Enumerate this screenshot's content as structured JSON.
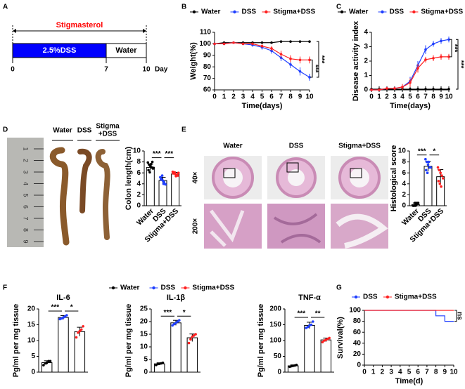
{
  "panel_labels": [
    "A",
    "B",
    "C",
    "D",
    "E",
    "F",
    "G"
  ],
  "panel_a": {
    "title": "Stigmasterol",
    "xlim": [
      0,
      10
    ],
    "xticks": [
      0,
      7,
      10
    ],
    "unit": "Day",
    "segments": [
      {
        "label": "2.5%DSS",
        "color": "#0000ff",
        "start": 0,
        "end": 7
      },
      {
        "label": "Water",
        "color": "#ffffff",
        "start": 7,
        "end": 10
      }
    ]
  },
  "panel_d": {
    "photo_labels": [
      "Water",
      "DSS",
      "Stigma",
      "+DSS"
    ],
    "ruler_labels": [
      "1",
      "2",
      "3",
      "4",
      "5",
      "6",
      "7",
      "8",
      "9"
    ]
  },
  "panel_e": {
    "column_labels": [
      "Water",
      "DSS",
      "Stigma+DSS"
    ],
    "row_labels": [
      "40×",
      "200×"
    ]
  },
  "panel_f_legend": [
    {
      "name": "Water",
      "color": "#000000"
    },
    {
      "name": "DSS",
      "color": "#1f3fff"
    },
    {
      "name": "Stigma+DSS",
      "color": "#ff2020"
    }
  ],
  "chart_data": [
    {
      "type": "line",
      "xlabel": "Time(days)",
      "ylabel": "Weight(%)",
      "x": [
        0,
        1,
        2,
        3,
        4,
        5,
        6,
        7,
        8,
        9,
        10
      ],
      "xlim": [
        0,
        10
      ],
      "xticks": [
        0,
        1,
        2,
        3,
        4,
        5,
        6,
        7,
        8,
        9,
        10
      ],
      "ylim": [
        60,
        110
      ],
      "yticks": [
        60,
        70,
        80,
        90,
        100,
        110
      ],
      "series": [
        {
          "name": "Water",
          "color": "#000000",
          "values": [
            100,
            101,
            101,
            101,
            101,
            101,
            101,
            102,
            102,
            102,
            102
          ],
          "errors": [
            0.5,
            1,
            1,
            1,
            1,
            1,
            1,
            1,
            1,
            1,
            1
          ]
        },
        {
          "name": "DSS",
          "color": "#1f3fff",
          "values": [
            100,
            100,
            101,
            100,
            99,
            97,
            94,
            88,
            82,
            76,
            71
          ],
          "errors": [
            0.5,
            1,
            1,
            1,
            1.5,
            2,
            2.5,
            3,
            3,
            3.5,
            3
          ]
        },
        {
          "name": "Stigma+DSS",
          "color": "#ff2020",
          "values": [
            100,
            100,
            101,
            100,
            100,
            98,
            96,
            91,
            87,
            86,
            86
          ],
          "errors": [
            0.5,
            1,
            1,
            1,
            1,
            1.5,
            2,
            3,
            3,
            3,
            3
          ]
        }
      ],
      "significance": [
        "***",
        "***"
      ]
    },
    {
      "type": "line",
      "xlabel": "Time(days)",
      "ylabel": "Disease activity index",
      "x": [
        0,
        1,
        2,
        3,
        4,
        5,
        6,
        7,
        8,
        9,
        10
      ],
      "xlim": [
        0,
        10
      ],
      "xticks": [
        0,
        1,
        2,
        3,
        4,
        5,
        6,
        7,
        8,
        9,
        10
      ],
      "ylim": [
        0,
        4
      ],
      "yticks": [
        0,
        1,
        2,
        3,
        4
      ],
      "series": [
        {
          "name": "Water",
          "color": "#000000",
          "values": [
            0.05,
            0.05,
            0.05,
            0.05,
            0.05,
            0.05,
            0.05,
            0.05,
            0.05,
            0.05,
            0.05
          ],
          "errors": [
            0.05,
            0.2,
            0.2,
            0.2,
            0.2,
            0.2,
            0.2,
            0.2,
            0.2,
            0.2,
            0.2
          ]
        },
        {
          "name": "DSS",
          "color": "#1f3fff",
          "values": [
            0,
            0,
            0.1,
            0.1,
            0.2,
            0.6,
            1.7,
            2.8,
            3.2,
            3.4,
            3.5
          ],
          "errors": [
            0,
            0.1,
            0.1,
            0.1,
            0.2,
            0.3,
            0.3,
            0.3,
            0.2,
            0.2,
            0.2
          ]
        },
        {
          "name": "Stigma+DSS",
          "color": "#ff2020",
          "values": [
            0,
            0,
            0.1,
            0.1,
            0.2,
            0.5,
            1.5,
            2.1,
            2.2,
            2.3,
            2.3
          ],
          "errors": [
            0,
            0.1,
            0.1,
            0.1,
            0.2,
            0.3,
            0.3,
            0.2,
            0.2,
            0.2,
            0.2
          ]
        }
      ],
      "significance": [
        "***",
        "***"
      ]
    },
    {
      "type": "bar",
      "ylabel": "Colon length(cm)",
      "categories": [
        "Water",
        "DSS",
        "Stigma+DSS"
      ],
      "values": [
        7.0,
        4.6,
        5.8
      ],
      "errors": [
        0.6,
        0.6,
        0.3
      ],
      "bar_color": "#ffffff",
      "edge_color": "#000000",
      "colors": [
        "#000000",
        "#1f3fff",
        "#ff2020"
      ],
      "points": [
        [
          7.9,
          7.5,
          7.2,
          7.0,
          6.8,
          6.5,
          6.1,
          7.6,
          8.0,
          6.9
        ],
        [
          5.2,
          4.9,
          4.6,
          4.3,
          3.9,
          4.8,
          5.5,
          4.0
        ],
        [
          6.2,
          6.0,
          5.8,
          5.6,
          5.5,
          5.9,
          6.1,
          5.4,
          5.7,
          6.0
        ]
      ],
      "ylim": [
        0,
        10
      ],
      "yticks": [
        0,
        2,
        4,
        6,
        8,
        10
      ],
      "significance": [
        "***",
        "***"
      ]
    },
    {
      "type": "bar",
      "ylabel": "Histological score",
      "categories": [
        "Water",
        "DSS",
        "Stigma+DSS"
      ],
      "values": [
        0.2,
        7.2,
        5.3
      ],
      "errors": [
        0.3,
        0.9,
        1.3
      ],
      "bar_color": "#ffffff",
      "edge_color": "#000000",
      "colors": [
        "#000000",
        "#1f3fff",
        "#ff2020"
      ],
      "points": [
        [
          0,
          0,
          0,
          0.5,
          0.5,
          0,
          0.5,
          0.2
        ],
        [
          8.5,
          8,
          7.5,
          7,
          7,
          6.5,
          6,
          8
        ],
        [
          7,
          6.5,
          6,
          5.5,
          5,
          4.5,
          4,
          3.5
        ]
      ],
      "ylim": [
        0,
        10
      ],
      "yticks": [
        0,
        2,
        4,
        6,
        8,
        10
      ],
      "significance": [
        "***",
        "*"
      ]
    },
    {
      "type": "bar",
      "title": "IL-6",
      "ylabel": "Pg/ml per mg tissue",
      "categories": [
        null,
        null,
        null
      ],
      "values": [
        3,
        17.3,
        12.8
      ],
      "errors": [
        0.6,
        0.6,
        1.4
      ],
      "bar_color": "#ffffff",
      "edge_color": "#000000",
      "colors": [
        "#000000",
        "#1f3fff",
        "#ff2020"
      ],
      "points": [
        [
          2.2,
          2.8,
          3,
          3.5,
          3.5
        ],
        [
          16.8,
          17,
          17.3,
          17.6,
          18
        ],
        [
          11,
          12.5,
          13,
          13.5,
          14.5
        ]
      ],
      "ylim": [
        0,
        20
      ],
      "yticks": [
        0,
        5,
        10,
        15,
        20
      ],
      "significance": [
        "***",
        "*"
      ]
    },
    {
      "type": "bar",
      "title": "IL-1β",
      "ylabel": "Pg/ml per mg tissue",
      "categories": [
        null,
        null,
        null
      ],
      "values": [
        3.3,
        19.5,
        13.6
      ],
      "errors": [
        0.4,
        1,
        1.5
      ],
      "bar_color": "#ffffff",
      "edge_color": "#000000",
      "colors": [
        "#000000",
        "#1f3fff",
        "#ff2020"
      ],
      "points": [
        [
          2.8,
          3.2,
          3.3,
          3.5,
          3.7
        ],
        [
          18.5,
          19,
          19.5,
          20,
          20.5
        ],
        [
          11.5,
          13,
          14,
          14.5,
          15
        ]
      ],
      "ylim": [
        0,
        25
      ],
      "yticks": [
        0,
        5,
        10,
        15,
        20,
        25
      ],
      "significance": [
        "***",
        "*"
      ]
    },
    {
      "type": "bar",
      "title": "TNF-α",
      "ylabel": "Pg/ml per mg tissue",
      "categories": [
        null,
        null,
        null
      ],
      "values": [
        20,
        148,
        102
      ],
      "errors": [
        3,
        10,
        6
      ],
      "bar_color": "#ffffff",
      "edge_color": "#000000",
      "colors": [
        "#000000",
        "#1f3fff",
        "#ff2020"
      ],
      "points": [
        [
          17,
          19,
          20,
          21,
          23
        ],
        [
          140,
          143,
          148,
          150,
          160
        ],
        [
          95,
          100,
          102,
          105,
          108
        ]
      ],
      "ylim": [
        0,
        200
      ],
      "yticks": [
        0,
        50,
        100,
        150,
        200
      ],
      "significance": [
        "***",
        "**"
      ]
    },
    {
      "type": "line",
      "step": true,
      "xlabel": "Time(d)",
      "ylabel": "Survival(%)",
      "x": [
        0,
        1,
        2,
        3,
        4,
        5,
        6,
        7,
        8,
        9,
        10
      ],
      "xlim": [
        0,
        10
      ],
      "xticks": [
        0,
        1,
        2,
        3,
        4,
        5,
        6,
        7,
        8,
        9,
        10
      ],
      "ylim": [
        0,
        100
      ],
      "yticks": [
        0,
        20,
        40,
        60,
        80,
        100
      ],
      "series": [
        {
          "name": "DSS",
          "color": "#1f3fff",
          "values": [
            100,
            100,
            100,
            100,
            100,
            100,
            100,
            100,
            90,
            80,
            80
          ]
        },
        {
          "name": "Stigma+DSS",
          "color": "#ff2020",
          "values": [
            100,
            100,
            100,
            100,
            100,
            100,
            100,
            100,
            100,
            100,
            100
          ]
        }
      ],
      "significance": [
        "ns"
      ]
    }
  ]
}
